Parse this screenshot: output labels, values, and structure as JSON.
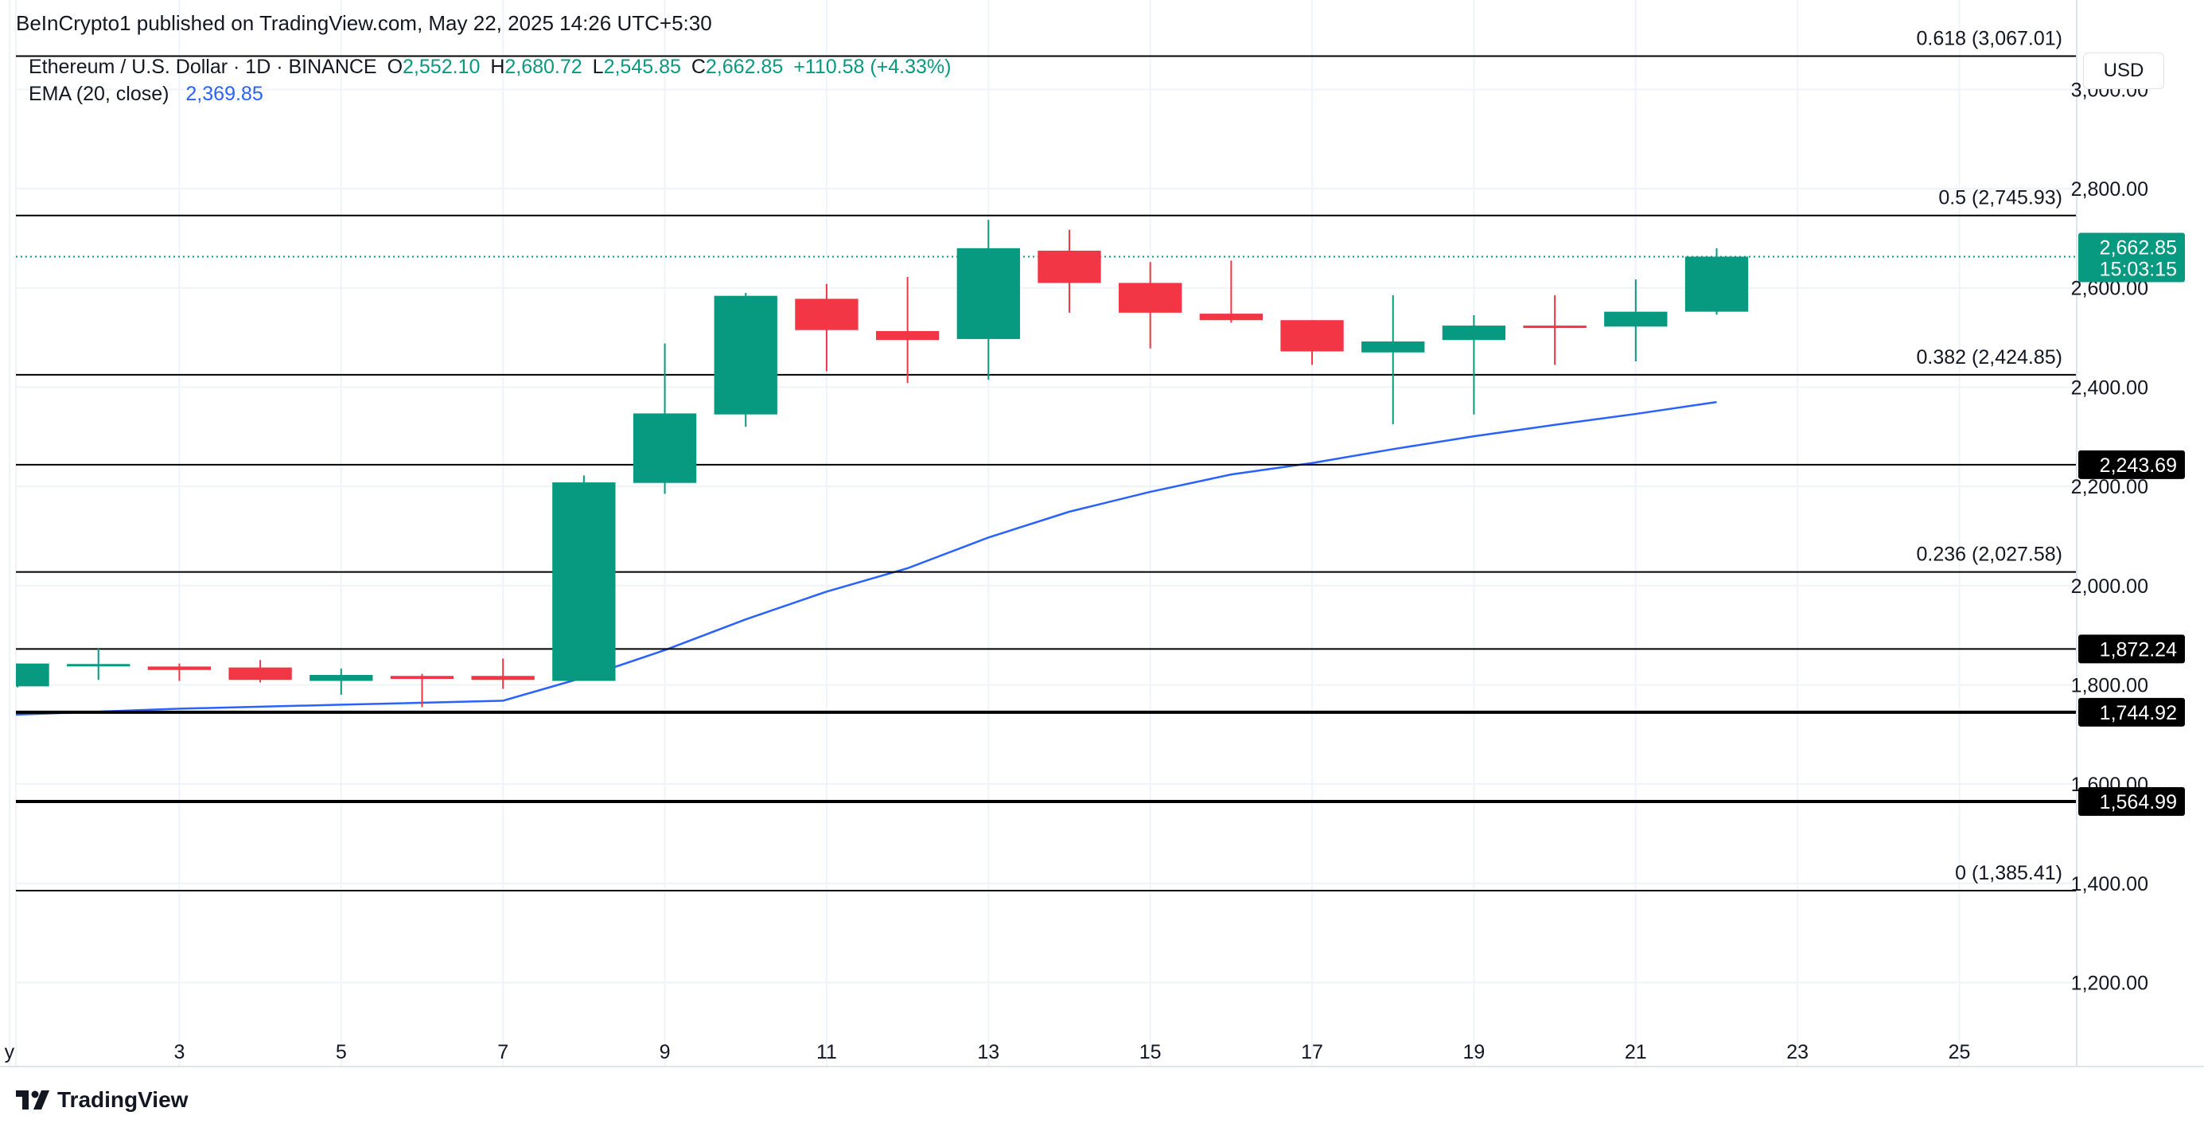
{
  "header": {
    "publisher": "BeInCrypto1 published on TradingView.com, May 22, 2025 14:26 UTC+5:30"
  },
  "legend": {
    "symbol": "Ethereum / U.S. Dollar · 1D · BINANCE",
    "o_label": "O",
    "o_value": "2,552.10",
    "h_label": "H",
    "h_value": "2,680.72",
    "l_label": "L",
    "l_value": "2,545.85",
    "c_label": "C",
    "c_value": "2,662.85",
    "change": "+110.58 (+4.33%)",
    "ema_label": "EMA (20, close)",
    "ema_value": "2,369.85"
  },
  "currency": "USD",
  "brand": "TradingView",
  "colors": {
    "up": "#089981",
    "down": "#f23645",
    "ema": "#2962ff",
    "level": "#000000",
    "grid": "#f0f3fa"
  },
  "chart_data": {
    "type": "candlestick",
    "x_ticks": [
      "y",
      "3",
      "5",
      "7",
      "9",
      "11",
      "13",
      "15",
      "17",
      "19",
      "21",
      "23",
      "25"
    ],
    "x_tick_days": [
      0.9,
      3,
      5,
      7,
      9,
      11,
      13,
      15,
      17,
      19,
      21,
      23,
      25
    ],
    "x_range": [
      0.98,
      26.45
    ],
    "y_ticks": [
      1200,
      1400,
      1600,
      1800,
      2000,
      2200,
      2400,
      2600,
      2800,
      3000
    ],
    "y_tick_labels": [
      "1,200.00",
      "1,400.00",
      "1,600.00",
      "1,800.00",
      "2,000.00",
      "2,200.00",
      "2,400.00",
      "2,600.00",
      "2,800.00",
      "3,000.00"
    ],
    "y_range": [
      1087,
      3116
    ],
    "candles": [
      {
        "day": 1,
        "open": 1797,
        "high": 1843,
        "low": 1795,
        "close": 1843
      },
      {
        "day": 2,
        "open": 1840,
        "high": 1873,
        "low": 1810,
        "close": 1842
      },
      {
        "day": 3,
        "open": 1837,
        "high": 1843,
        "low": 1808,
        "close": 1830
      },
      {
        "day": 4,
        "open": 1835,
        "high": 1850,
        "low": 1805,
        "close": 1810
      },
      {
        "day": 5,
        "open": 1808,
        "high": 1833,
        "low": 1780,
        "close": 1820
      },
      {
        "day": 6,
        "open": 1818,
        "high": 1822,
        "low": 1755,
        "close": 1812
      },
      {
        "day": 7,
        "open": 1818,
        "high": 1853,
        "low": 1792,
        "close": 1810
      },
      {
        "day": 8,
        "open": 1808,
        "high": 2222,
        "low": 1808,
        "close": 2208
      },
      {
        "day": 9,
        "open": 2207,
        "high": 2488,
        "low": 2185,
        "close": 2347
      },
      {
        "day": 10,
        "open": 2345,
        "high": 2590,
        "low": 2320,
        "close": 2584
      },
      {
        "day": 11,
        "open": 2578,
        "high": 2608,
        "low": 2432,
        "close": 2515
      },
      {
        "day": 12,
        "open": 2513,
        "high": 2622,
        "low": 2408,
        "close": 2495
      },
      {
        "day": 13,
        "open": 2497,
        "high": 2737,
        "low": 2415,
        "close": 2680
      },
      {
        "day": 14,
        "open": 2675,
        "high": 2717,
        "low": 2550,
        "close": 2610
      },
      {
        "day": 15,
        "open": 2610,
        "high": 2652,
        "low": 2478,
        "close": 2550
      },
      {
        "day": 16,
        "open": 2548,
        "high": 2655,
        "low": 2530,
        "close": 2535
      },
      {
        "day": 17,
        "open": 2535,
        "high": 2535,
        "low": 2445,
        "close": 2472
      },
      {
        "day": 18,
        "open": 2470,
        "high": 2585,
        "low": 2325,
        "close": 2492
      },
      {
        "day": 19,
        "open": 2495,
        "high": 2545,
        "low": 2345,
        "close": 2524
      },
      {
        "day": 20,
        "open": 2524,
        "high": 2585,
        "low": 2445,
        "close": 2521
      },
      {
        "day": 21,
        "open": 2522,
        "high": 2617,
        "low": 2452,
        "close": 2552
      },
      {
        "day": 22,
        "open": 2552,
        "high": 2680,
        "low": 2546,
        "close": 2663
      }
    ],
    "ema": {
      "name": "EMA (20, close)",
      "days": [
        1,
        3,
        5,
        7,
        8,
        9,
        10,
        11,
        12,
        13,
        14,
        15,
        16,
        17,
        18,
        19,
        20,
        21,
        22
      ],
      "values": [
        1740,
        1752,
        1760,
        1768,
        1815,
        1870,
        1932,
        1988,
        2035,
        2097,
        2149,
        2189,
        2224,
        2247,
        2275,
        2301,
        2324,
        2346,
        2370
      ]
    },
    "levels": [
      {
        "price": 3067.01,
        "label": "0.618 (3,067.01)",
        "width": 2
      },
      {
        "price": 2745.93,
        "label": "0.5 (2,745.93)",
        "width": 2
      },
      {
        "price": 2424.85,
        "label": "0.382 (2,424.85)",
        "width": 2
      },
      {
        "price": 2243.69,
        "label": "",
        "width": 2,
        "tag": "2,243.69"
      },
      {
        "price": 2027.58,
        "label": "0.236 (2,027.58)",
        "width": 2
      },
      {
        "price": 1872.24,
        "label": "",
        "width": 2,
        "tag": "1,872.24"
      },
      {
        "price": 1744.92,
        "label": "",
        "width": 4,
        "tag": "1,744.92"
      },
      {
        "price": 1564.99,
        "label": "",
        "width": 4,
        "tag": "1,564.99"
      },
      {
        "price": 1385.41,
        "label": "0 (1,385.41)",
        "width": 2
      }
    ],
    "last_price": {
      "value": 2662.85,
      "label": "2,662.85",
      "countdown": "15:03:15"
    }
  }
}
